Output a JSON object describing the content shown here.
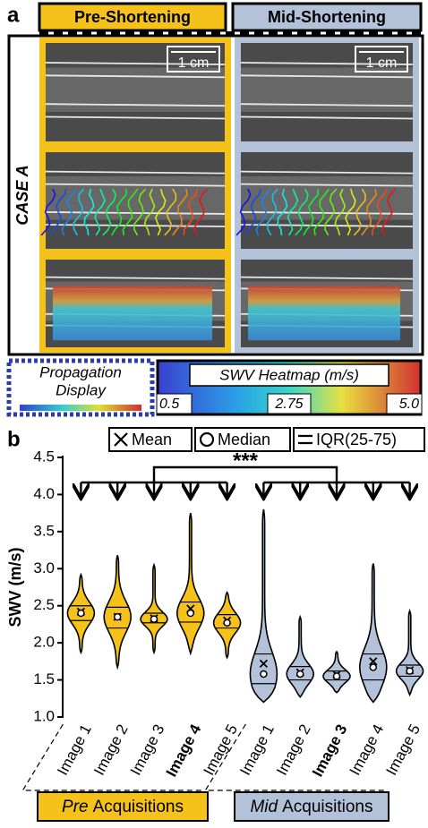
{
  "panel_a": {
    "label": "a",
    "columns": [
      "Pre-Shortening",
      "Mid-Shortening"
    ],
    "case_label": "CASE A",
    "scale_bar": [
      "1 cm",
      "1 cm"
    ],
    "propagation_legend": [
      "Propagation",
      "Display"
    ],
    "heatmap_legend": {
      "title": "SWV Heatmap (m/s)",
      "range": [
        0.5,
        5
      ],
      "ticks": [
        0.5,
        2.75,
        {
          "value": 5,
          "label": "5.0"
        }
      ]
    }
  },
  "chart_data": {
    "type": "violin",
    "panel_label": "b",
    "ylabel": "SWV (m/s)",
    "ylim": [
      1,
      4.5
    ],
    "yticks": [
      {
        "value": 1,
        "label": "1.0"
      },
      1.5,
      {
        "value": 2,
        "label": "2.0"
      },
      2.5,
      {
        "value": 3,
        "label": "3.0"
      },
      3.5,
      {
        "value": 4,
        "label": "4.0"
      },
      4.5
    ],
    "legend": [
      "Mean",
      "Median",
      "IQR(25-75)"
    ],
    "significance": "***",
    "groups": [
      {
        "label": {
          "italic": "Pre",
          "rest": "Acquisitions"
        },
        "color": "#f5c21b",
        "bold_category": 3,
        "categories": [
          "Image 1",
          "Image 2",
          "Image 3",
          "Image 4",
          "Image 5"
        ],
        "min": [
          1.87,
          1.67,
          1.87,
          1.86,
          1.8
        ],
        "max": [
          2.92,
          3.18,
          3.05,
          3.75,
          2.68
        ],
        "q1": [
          2.3,
          2.2,
          2.27,
          2.28,
          2.2
        ],
        "q3": [
          2.5,
          2.48,
          2.4,
          2.55,
          2.38
        ],
        "median": [
          2.4,
          2.35,
          2.32,
          2.4,
          2.27
        ],
        "mean": [
          2.42,
          2.35,
          2.33,
          2.46,
          2.3
        ]
      },
      {
        "label": {
          "italic": "Mid",
          "rest": "Acquisitions"
        },
        "color": "#b3c1d9",
        "bold_category": 2,
        "categories": [
          "Image 1",
          "Image 2",
          "Image 3",
          "Image 4",
          "Image 5"
        ],
        "min": [
          1.2,
          1.27,
          1.33,
          1.2,
          1.3
        ],
        "max": [
          3.8,
          2.35,
          1.88,
          3.07,
          2.43
        ],
        "q1": [
          1.45,
          1.5,
          1.5,
          1.5,
          1.55
        ],
        "q3": [
          1.85,
          1.68,
          1.62,
          1.85,
          1.7
        ],
        "median": [
          1.58,
          1.58,
          1.55,
          1.67,
          1.62
        ],
        "mean": [
          1.72,
          1.6,
          1.57,
          1.75,
          1.63
        ]
      }
    ]
  }
}
